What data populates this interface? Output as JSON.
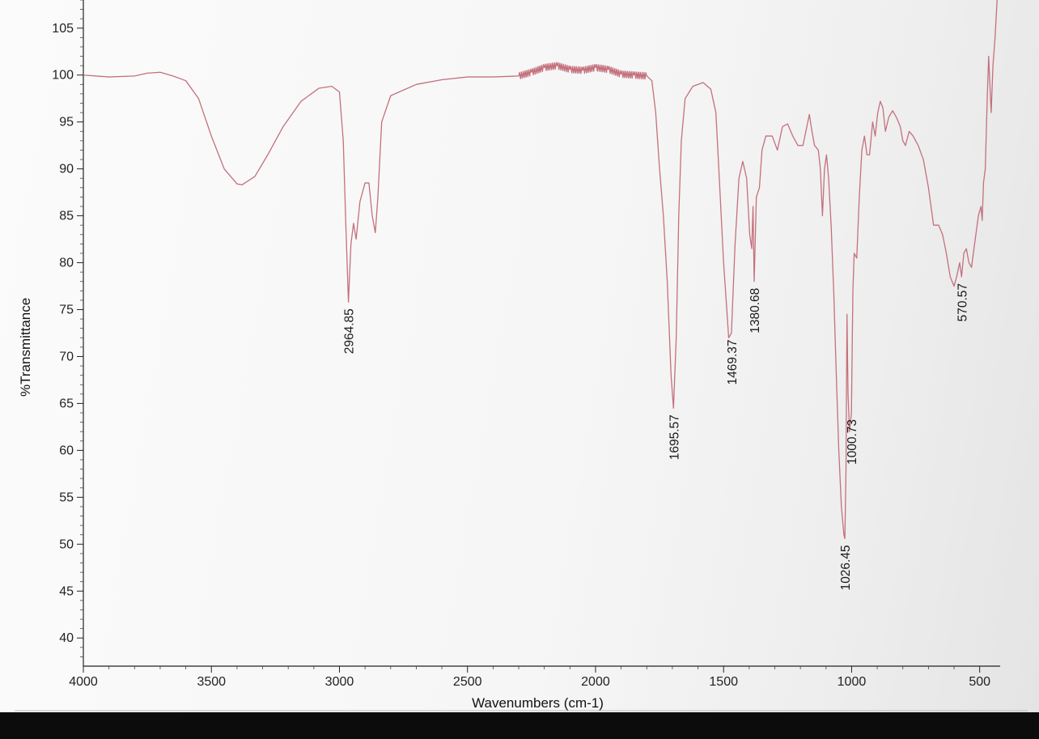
{
  "chart_data": {
    "type": "line",
    "xlabel": "Wavenumbers (cm-1)",
    "ylabel": "%Transmittance",
    "xlim": [
      4000,
      420
    ],
    "ylim": [
      37,
      108
    ],
    "x_ticks": [
      4000,
      3500,
      3000,
      2500,
      2000,
      1500,
      1000,
      500
    ],
    "y_ticks": [
      40,
      45,
      50,
      55,
      60,
      65,
      70,
      75,
      80,
      85,
      90,
      95,
      100,
      105
    ],
    "grid": false,
    "line_color": "#c4707c",
    "series": [
      {
        "points": [
          [
            4000,
            100
          ],
          [
            3900,
            99.8
          ],
          [
            3800,
            99.9
          ],
          [
            3750,
            100.2
          ],
          [
            3700,
            100.3
          ],
          [
            3650,
            99.9
          ],
          [
            3600,
            99.4
          ],
          [
            3550,
            97.5
          ],
          [
            3500,
            93.5
          ],
          [
            3450,
            90
          ],
          [
            3400,
            88.4
          ],
          [
            3380,
            88.3
          ],
          [
            3330,
            89.2
          ],
          [
            3280,
            91.5
          ],
          [
            3220,
            94.5
          ],
          [
            3150,
            97.2
          ],
          [
            3080,
            98.6
          ],
          [
            3030,
            98.8
          ],
          [
            3000,
            98.2
          ],
          [
            2985,
            93
          ],
          [
            2975,
            84
          ],
          [
            2964.85,
            75.8
          ],
          [
            2955,
            82
          ],
          [
            2945,
            84.2
          ],
          [
            2935,
            82.5
          ],
          [
            2920,
            86.5
          ],
          [
            2900,
            88.5
          ],
          [
            2885,
            88.5
          ],
          [
            2872,
            85
          ],
          [
            2860,
            83.2
          ],
          [
            2850,
            87
          ],
          [
            2835,
            95
          ],
          [
            2800,
            97.8
          ],
          [
            2700,
            99
          ],
          [
            2600,
            99.5
          ],
          [
            2500,
            99.8
          ],
          [
            2400,
            99.8
          ],
          [
            2300,
            99.9
          ],
          [
            2250,
            100.3
          ],
          [
            2200,
            100.8
          ],
          [
            2150,
            101
          ],
          [
            2100,
            100.6
          ],
          [
            2050,
            100.5
          ],
          [
            2000,
            100.8
          ],
          [
            1950,
            100.6
          ],
          [
            1900,
            100.1
          ],
          [
            1850,
            100
          ],
          [
            1800,
            99.9
          ],
          [
            1780,
            99.4
          ],
          [
            1765,
            96
          ],
          [
            1750,
            90
          ],
          [
            1735,
            85
          ],
          [
            1720,
            78
          ],
          [
            1705,
            68
          ],
          [
            1695.57,
            64.5
          ],
          [
            1685,
            72
          ],
          [
            1675,
            85
          ],
          [
            1665,
            93
          ],
          [
            1650,
            97.5
          ],
          [
            1620,
            98.8
          ],
          [
            1580,
            99.2
          ],
          [
            1550,
            98.5
          ],
          [
            1530,
            96
          ],
          [
            1515,
            88
          ],
          [
            1500,
            80
          ],
          [
            1490,
            76
          ],
          [
            1480,
            72
          ],
          [
            1469.37,
            72.5
          ],
          [
            1455,
            82
          ],
          [
            1440,
            89
          ],
          [
            1425,
            90.8
          ],
          [
            1410,
            89
          ],
          [
            1398,
            83
          ],
          [
            1390,
            81.5
          ],
          [
            1385,
            86
          ],
          [
            1380.68,
            78
          ],
          [
            1372,
            87
          ],
          [
            1360,
            88
          ],
          [
            1350,
            92
          ],
          [
            1335,
            93.5
          ],
          [
            1310,
            93.5
          ],
          [
            1290,
            92
          ],
          [
            1270,
            94.5
          ],
          [
            1250,
            94.8
          ],
          [
            1230,
            93.5
          ],
          [
            1210,
            92.5
          ],
          [
            1190,
            92.5
          ],
          [
            1175,
            94.5
          ],
          [
            1165,
            95.8
          ],
          [
            1155,
            94
          ],
          [
            1145,
            92.5
          ],
          [
            1130,
            92
          ],
          [
            1122,
            90
          ],
          [
            1114,
            85
          ],
          [
            1106,
            90
          ],
          [
            1098,
            91.5
          ],
          [
            1090,
            89
          ],
          [
            1080,
            84
          ],
          [
            1070,
            77
          ],
          [
            1060,
            68
          ],
          [
            1050,
            60
          ],
          [
            1040,
            54
          ],
          [
            1030,
            51
          ],
          [
            1026.45,
            50.6
          ],
          [
            1022,
            58
          ],
          [
            1018,
            74.5
          ],
          [
            1014,
            66
          ],
          [
            1008,
            62
          ],
          [
            1000.73,
            64
          ],
          [
            995,
            77
          ],
          [
            990,
            81
          ],
          [
            980,
            80.5
          ],
          [
            970,
            87
          ],
          [
            960,
            92
          ],
          [
            950,
            93.5
          ],
          [
            940,
            91.5
          ],
          [
            930,
            91.5
          ],
          [
            918,
            95
          ],
          [
            908,
            93.5
          ],
          [
            898,
            96
          ],
          [
            888,
            97.2
          ],
          [
            878,
            96.5
          ],
          [
            868,
            94
          ],
          [
            855,
            95.5
          ],
          [
            840,
            96.2
          ],
          [
            825,
            95.5
          ],
          [
            810,
            94.5
          ],
          [
            800,
            93
          ],
          [
            790,
            92.5
          ],
          [
            775,
            94
          ],
          [
            760,
            93.5
          ],
          [
            740,
            92.5
          ],
          [
            720,
            91
          ],
          [
            700,
            88
          ],
          [
            680,
            84
          ],
          [
            660,
            84
          ],
          [
            645,
            83
          ],
          [
            630,
            81
          ],
          [
            615,
            78.5
          ],
          [
            600,
            77.5
          ],
          [
            590,
            78.5
          ],
          [
            578,
            80
          ],
          [
            570.57,
            78.5
          ],
          [
            562,
            81
          ],
          [
            552,
            81.5
          ],
          [
            542,
            80
          ],
          [
            532,
            79.5
          ],
          [
            520,
            82
          ],
          [
            505,
            85
          ],
          [
            495,
            86
          ],
          [
            490,
            84.5
          ],
          [
            485,
            88.5
          ],
          [
            478,
            90
          ],
          [
            470,
            98
          ],
          [
            465,
            102
          ],
          [
            460,
            99
          ],
          [
            455,
            96
          ],
          [
            448,
            101
          ],
          [
            440,
            104
          ],
          [
            432,
            108
          ]
        ]
      }
    ],
    "peak_labels": [
      {
        "x": 2964.85,
        "y": 75.8,
        "text": "2964.85"
      },
      {
        "x": 1695.57,
        "y": 64.5,
        "text": "1695.57"
      },
      {
        "x": 1469.37,
        "y": 72.5,
        "text": "1469.37"
      },
      {
        "x": 1380.68,
        "y": 78,
        "text": "1380.68"
      },
      {
        "x": 1026.45,
        "y": 50.6,
        "text": "1026.45"
      },
      {
        "x": 1000.73,
        "y": 64,
        "text": "1000.73"
      },
      {
        "x": 570.57,
        "y": 78.5,
        "text": "570.57"
      }
    ]
  }
}
